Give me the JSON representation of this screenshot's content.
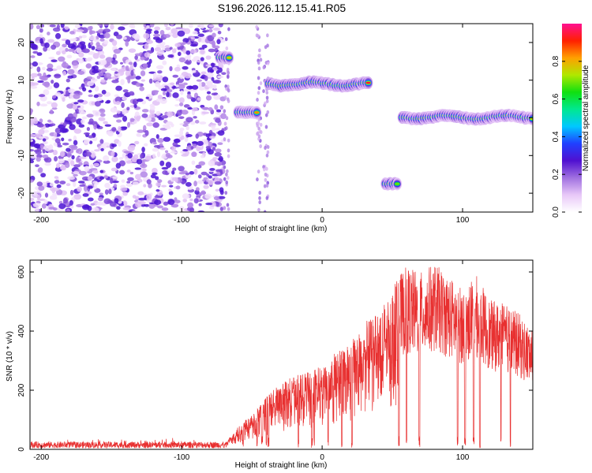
{
  "figure": {
    "title": "S196.2026.112.15.41.R05"
  },
  "chart_data": [
    {
      "type": "heatmap",
      "xlabel": "Height of straight line (km)",
      "ylabel": "Frequency (Hz)",
      "xlim": [
        -208,
        150
      ],
      "ylim": [
        -25,
        25
      ],
      "xticks": [
        -200,
        -100,
        0,
        100
      ],
      "yticks": [
        -20,
        -10,
        0,
        10,
        20
      ],
      "colorbar": {
        "label": "Normalized spectral amplitude",
        "range": [
          0,
          1
        ],
        "ticks": [
          0.0,
          0.2,
          0.4,
          0.6,
          0.8
        ],
        "tick_labels": [
          "0.0",
          "0.2",
          "0.4",
          "0.6",
          "0.8"
        ],
        "colormap": [
          "#ffffff",
          "#e8c8f8",
          "#a070e0",
          "#5010d0",
          "#2040ff",
          "#00c8ff",
          "#00e890",
          "#10e010",
          "#b0e800",
          "#ffa000",
          "#ff2000",
          "#ff1090"
        ]
      },
      "regions": [
        {
          "x": [
            -208,
            -70
          ],
          "kind": "scattered noise",
          "y_range": [
            -25,
            25
          ]
        },
        {
          "x": [
            -73,
            -65
          ],
          "kind": "tone",
          "y": 16
        },
        {
          "x": [
            -60,
            -45
          ],
          "kind": "tone",
          "y": 1.5
        },
        {
          "x": [
            -38,
            33
          ],
          "kind": "tone",
          "y": 9
        },
        {
          "x": [
            45,
            55
          ],
          "kind": "tone",
          "y": -17.5
        },
        {
          "x": [
            57,
            150
          ],
          "kind": "tone",
          "y": 0.2
        }
      ]
    },
    {
      "type": "line",
      "xlabel": "Height of straight line (km)",
      "ylabel": "SNR (10 * v/v)",
      "xlim": [
        -208,
        150
      ],
      "ylim": [
        0,
        640
      ],
      "xticks": [
        -200,
        -100,
        0,
        100
      ],
      "yticks": [
        0,
        200,
        400,
        600
      ],
      "series_color": "#e83030",
      "series": [
        {
          "envelope_x": [
            -208,
            -150,
            -100,
            -70,
            -55,
            -40,
            -25,
            -10,
            0,
            10,
            20,
            30,
            40,
            50,
            55,
            60,
            70,
            80,
            90,
            100,
            110,
            120,
            130,
            140,
            150
          ],
          "envelope_y": [
            14,
            14,
            14,
            15,
            100,
            170,
            230,
            250,
            270,
            320,
            350,
            410,
            440,
            520,
            560,
            590,
            570,
            600,
            560,
            520,
            560,
            480,
            470,
            440,
            380
          ]
        }
      ]
    }
  ]
}
